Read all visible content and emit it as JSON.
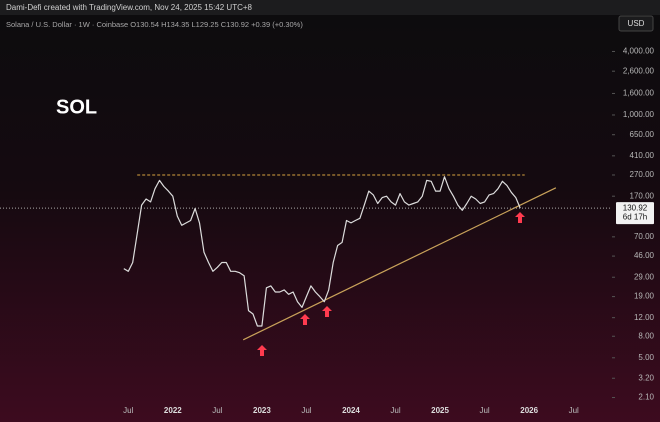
{
  "chart_data": {
    "type": "line",
    "header": "Dami-Defi created with TradingView.com, Nov 24, 2025 15:42 UTC+8",
    "subtitle": "Solana / U.S. Dollar · 1W · Coinbase  O130.54  H134.35  L129.25  C130.92  +0.39 (+0.30%)",
    "title": "SOL",
    "currency": "USD",
    "log_scale": true,
    "xlim": [
      2020.06,
      2026.93
    ],
    "ylim": [
      1.6,
      8300
    ],
    "xticks": [
      {
        "value": 2021.5,
        "label": "Jul"
      },
      {
        "value": 2022,
        "label": "2022"
      },
      {
        "value": 2022.5,
        "label": "Jul"
      },
      {
        "value": 2023,
        "label": "2023"
      },
      {
        "value": 2023.5,
        "label": "Jul"
      },
      {
        "value": 2024,
        "label": "2024"
      },
      {
        "value": 2024.5,
        "label": "Jul"
      },
      {
        "value": 2025,
        "label": "2025"
      },
      {
        "value": 2025.5,
        "label": "Jul"
      },
      {
        "value": 2026,
        "label": "2026"
      },
      {
        "value": 2026.5,
        "label": "Jul"
      }
    ],
    "yticks": [
      {
        "value": 4000,
        "label": "4,000.00"
      },
      {
        "value": 2600,
        "label": "2,600.00"
      },
      {
        "value": 1600,
        "label": "1,600.00"
      },
      {
        "value": 1000,
        "label": "1,000.00"
      },
      {
        "value": 650,
        "label": "650.00"
      },
      {
        "value": 410,
        "label": "410.00"
      },
      {
        "value": 270,
        "label": "270.00"
      },
      {
        "value": 170,
        "label": "170.00"
      },
      {
        "value": 70,
        "label": "70.00"
      },
      {
        "value": 46,
        "label": "46.00"
      },
      {
        "value": 29,
        "label": "29.00"
      },
      {
        "value": 19,
        "label": "19.00"
      },
      {
        "value": 12,
        "label": "12.00"
      },
      {
        "value": 8,
        "label": "8.00"
      },
      {
        "value": 5,
        "label": "5.00"
      },
      {
        "value": 3.2,
        "label": "3.20"
      },
      {
        "value": 2.1,
        "label": "2.10"
      }
    ],
    "last_price": {
      "value": 130.92,
      "label": "130.92",
      "countdown": "6d 17h"
    },
    "resistance": {
      "value": 270,
      "x": [
        2021.6,
        2025.95
      ],
      "color": "#d9a441"
    },
    "trendline": {
      "x": [
        2022.79,
        2026.3
      ],
      "values": [
        7.4,
        204
      ],
      "color": "#c9a25a"
    },
    "series": [
      {
        "name": "SOL/USD",
        "color": "#dcdcdc",
        "x": [
          2021.45,
          2021.5,
          2021.55,
          2021.6,
          2021.65,
          2021.7,
          2021.75,
          2021.8,
          2021.85,
          2021.9,
          2021.95,
          2022.0,
          2022.05,
          2022.1,
          2022.15,
          2022.2,
          2022.25,
          2022.3,
          2022.35,
          2022.4,
          2022.45,
          2022.5,
          2022.55,
          2022.6,
          2022.65,
          2022.7,
          2022.75,
          2022.8,
          2022.85,
          2022.9,
          2022.95,
          2023.0,
          2023.05,
          2023.1,
          2023.15,
          2023.2,
          2023.25,
          2023.3,
          2023.35,
          2023.4,
          2023.45,
          2023.5,
          2023.55,
          2023.6,
          2023.65,
          2023.7,
          2023.75,
          2023.8,
          2023.85,
          2023.9,
          2023.95,
          2024.0,
          2024.05,
          2024.1,
          2024.15,
          2024.2,
          2024.25,
          2024.3,
          2024.35,
          2024.4,
          2024.45,
          2024.5,
          2024.55,
          2024.6,
          2024.65,
          2024.7,
          2024.75,
          2024.8,
          2024.85,
          2024.9,
          2024.95,
          2025.0,
          2025.05,
          2025.1,
          2025.15,
          2025.2,
          2025.25,
          2025.3,
          2025.35,
          2025.4,
          2025.45,
          2025.5,
          2025.55,
          2025.6,
          2025.65,
          2025.7,
          2025.75,
          2025.8,
          2025.85,
          2025.9
        ],
        "values": [
          35,
          33,
          40,
          75,
          140,
          160,
          150,
          200,
          240,
          210,
          190,
          170,
          110,
          90,
          95,
          100,
          130,
          95,
          50,
          40,
          33,
          36,
          40,
          40,
          33,
          33,
          32,
          30,
          14,
          13,
          10,
          10,
          23,
          24,
          21,
          21,
          22,
          20,
          21,
          17,
          15,
          19,
          24,
          21,
          19,
          17,
          22,
          40,
          58,
          62,
          100,
          95,
          100,
          105,
          140,
          190,
          175,
          145,
          165,
          170,
          150,
          140,
          180,
          150,
          140,
          145,
          150,
          170,
          240,
          235,
          190,
          190,
          260,
          200,
          170,
          140,
          125,
          145,
          170,
          160,
          145,
          150,
          175,
          180,
          200,
          235,
          215,
          185,
          165,
          131
        ]
      }
    ]
  }
}
